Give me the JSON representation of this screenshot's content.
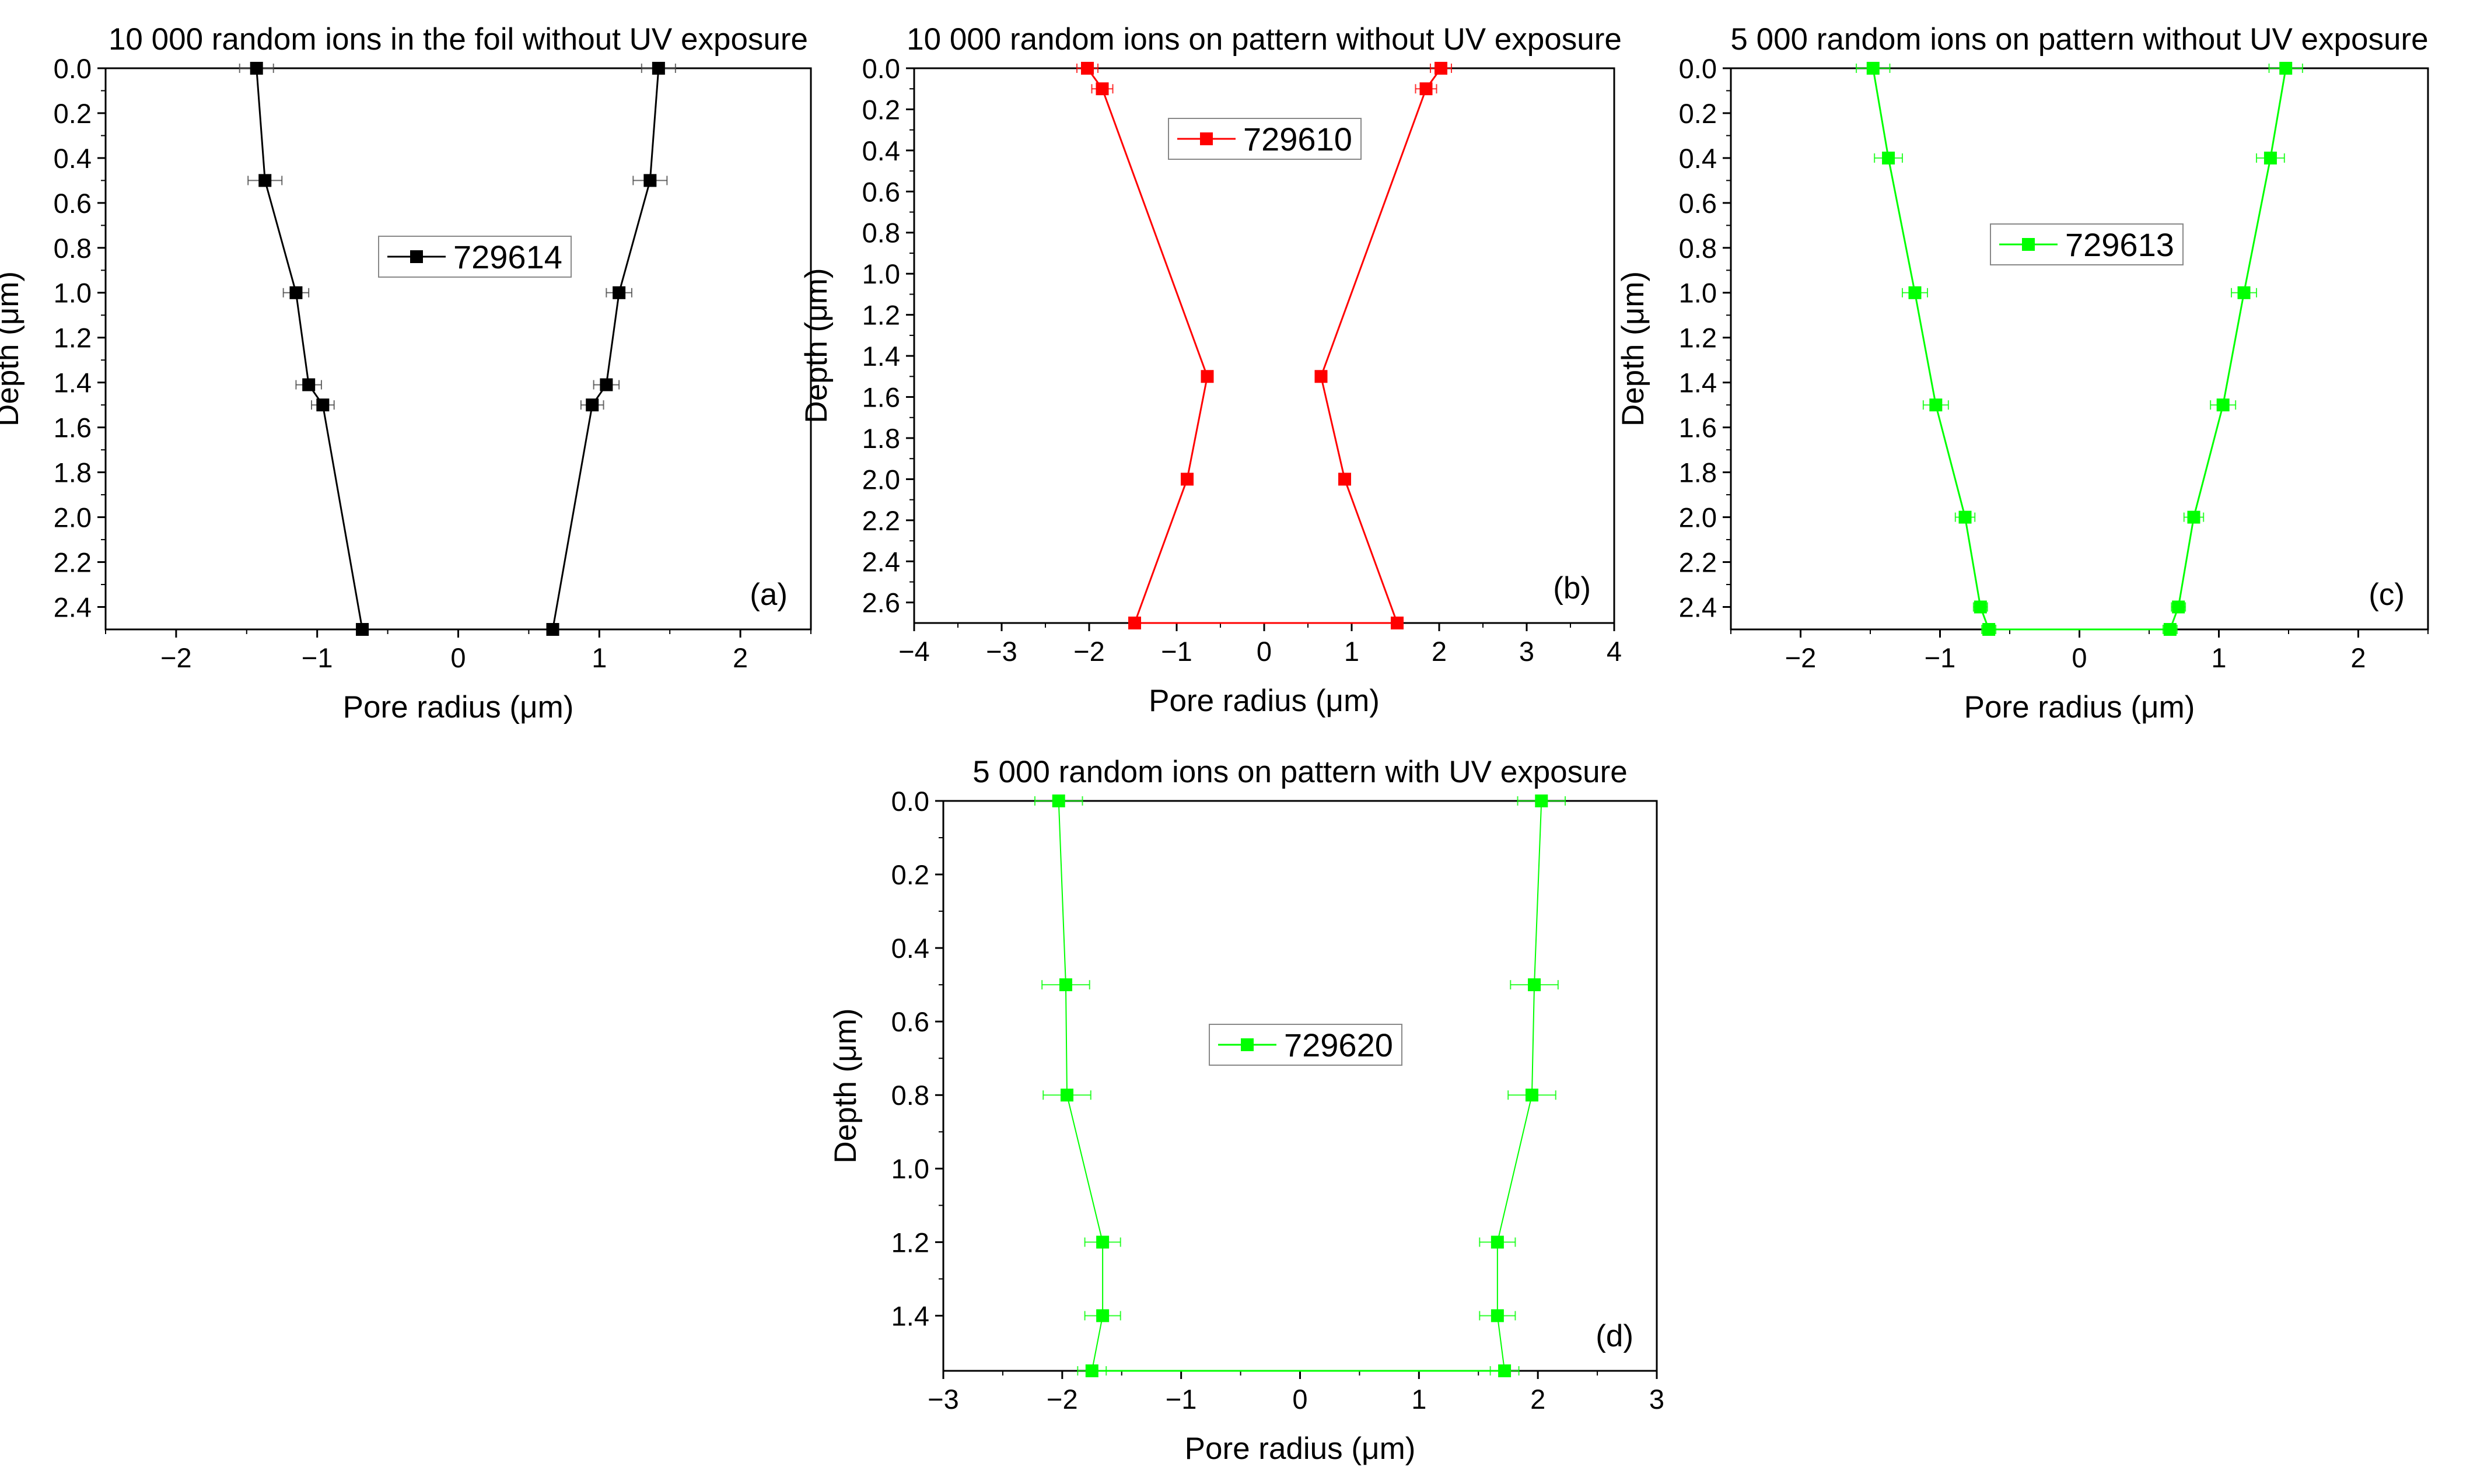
{
  "chart_data": [
    {
      "type": "line",
      "panel_label": "(a)",
      "title": "10 000 random ions in the foil without UV exposure",
      "xlabel": "Pore radius (μm)",
      "ylabel": "Depth (μm)",
      "xlim": [
        -2.5,
        2.5
      ],
      "ylim": [
        0,
        2.5
      ],
      "y_inverted": true,
      "xticks": [
        -2,
        -1,
        0,
        1,
        2
      ],
      "yticks": [
        0.0,
        0.2,
        0.4,
        0.6,
        0.8,
        1.0,
        1.2,
        1.4,
        1.6,
        1.8,
        2.0,
        2.2,
        2.4
      ],
      "color": "#000000",
      "legend": "729614",
      "legend_position": "center",
      "series": [
        {
          "name": "729614 left wall",
          "x": [
            -1.43,
            -1.37,
            -1.15,
            -1.06,
            -0.96,
            -0.68
          ],
          "y": [
            0.0,
            0.5,
            1.0,
            1.41,
            1.5,
            2.5
          ],
          "xerr": [
            0.12,
            0.12,
            0.09,
            0.09,
            0.08,
            0.04
          ]
        },
        {
          "name": "729614 right wall",
          "x": [
            1.42,
            1.36,
            1.14,
            1.05,
            0.95,
            0.67
          ],
          "y": [
            0.0,
            0.5,
            1.0,
            1.41,
            1.5,
            2.5
          ],
          "xerr": [
            0.12,
            0.12,
            0.09,
            0.09,
            0.08,
            0.04
          ]
        }
      ]
    },
    {
      "type": "line",
      "panel_label": "(b)",
      "title": "10 000 random ions on pattern without UV exposure",
      "xlabel": "Pore radius (μm)",
      "ylabel": "Depth (μm)",
      "xlim": [
        -4,
        4
      ],
      "ylim": [
        0,
        2.7
      ],
      "y_inverted": true,
      "xticks": [
        -4,
        -3,
        -2,
        -1,
        0,
        1,
        2,
        3,
        4
      ],
      "yticks": [
        0.0,
        0.2,
        0.4,
        0.6,
        0.8,
        1.0,
        1.2,
        1.4,
        1.6,
        1.8,
        2.0,
        2.2,
        2.4,
        2.6
      ],
      "color": "#ff0000",
      "legend": "729610",
      "legend_position": "top-center",
      "series": [
        {
          "name": "729610 left wall",
          "x": [
            -2.02,
            -1.85,
            -0.65,
            -0.88,
            -1.48
          ],
          "y": [
            0.0,
            0.1,
            1.5,
            2.0,
            2.7
          ],
          "xerr": [
            0.12,
            0.12,
            0.04,
            0.04,
            0.04
          ]
        },
        {
          "name": "729610 right wall",
          "x": [
            2.02,
            1.85,
            0.65,
            0.92,
            1.52
          ],
          "y": [
            0.0,
            0.1,
            1.5,
            2.0,
            2.7
          ],
          "xerr": [
            0.12,
            0.12,
            0.04,
            0.04,
            0.04
          ]
        }
      ]
    },
    {
      "type": "line",
      "panel_label": "(c)",
      "title": "5 000 random ions on pattern without UV exposure",
      "xlabel": "Pore radius (μm)",
      "ylabel": "Depth (μm)",
      "xlim": [
        -2.5,
        2.5
      ],
      "ylim": [
        0,
        2.5
      ],
      "y_inverted": true,
      "xticks": [
        -2,
        -1,
        0,
        1,
        2
      ],
      "yticks": [
        0.0,
        0.2,
        0.4,
        0.6,
        0.8,
        1.0,
        1.2,
        1.4,
        1.6,
        1.8,
        2.0,
        2.2,
        2.4
      ],
      "color": "#00ff00",
      "legend": "729613",
      "legend_position": "top-center",
      "series": [
        {
          "name": "729613 left wall",
          "x": [
            -1.48,
            -1.37,
            -1.18,
            -1.03,
            -0.82,
            -0.71,
            -0.65
          ],
          "y": [
            0.0,
            0.4,
            1.0,
            1.5,
            2.0,
            2.4,
            2.5
          ],
          "xerr": [
            0.12,
            0.1,
            0.09,
            0.09,
            0.07,
            0.05,
            0.05
          ]
        },
        {
          "name": "729613 right wall",
          "x": [
            1.48,
            1.37,
            1.18,
            1.03,
            0.82,
            0.71,
            0.65
          ],
          "y": [
            0.0,
            0.4,
            1.0,
            1.5,
            2.0,
            2.4,
            2.5
          ],
          "xerr": [
            0.12,
            0.1,
            0.09,
            0.09,
            0.07,
            0.05,
            0.05
          ]
        }
      ]
    },
    {
      "type": "line",
      "panel_label": "(d)",
      "title": "5 000 random ions on pattern with UV exposure",
      "xlabel": "Pore radius (μm)",
      "ylabel": "Depth (μm)",
      "xlim": [
        -3,
        3
      ],
      "ylim": [
        0,
        1.55
      ],
      "y_inverted": true,
      "xticks": [
        -3,
        -2,
        -1,
        0,
        1,
        2,
        3
      ],
      "yticks": [
        0.0,
        0.2,
        0.4,
        0.6,
        0.8,
        1.0,
        1.2,
        1.4
      ],
      "color": "#00ff00",
      "legend": "729620",
      "legend_position": "center",
      "series": [
        {
          "name": "729620 left wall",
          "x": [
            -2.03,
            -1.97,
            -1.96,
            -1.66,
            -1.66,
            -1.75
          ],
          "y": [
            0.0,
            0.5,
            0.8,
            1.2,
            1.4,
            1.55
          ],
          "xerr": [
            0.2,
            0.2,
            0.2,
            0.15,
            0.15,
            0.12
          ]
        },
        {
          "name": "729620 right wall",
          "x": [
            2.03,
            1.97,
            1.95,
            1.66,
            1.66,
            1.72
          ],
          "y": [
            0.0,
            0.5,
            0.8,
            1.2,
            1.4,
            1.55
          ],
          "xerr": [
            0.2,
            0.2,
            0.2,
            0.15,
            0.15,
            0.12
          ]
        }
      ]
    }
  ]
}
